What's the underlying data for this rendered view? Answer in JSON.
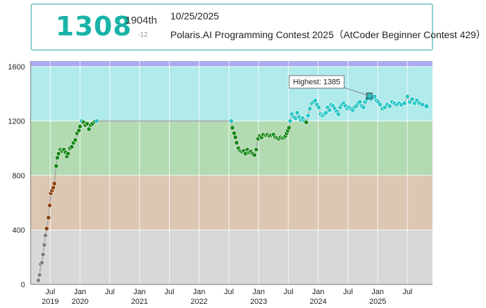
{
  "header": {
    "rating": "1308",
    "rank": "1904th",
    "delta": "-12",
    "date": "10/25/2025",
    "contest_name": "Polaris.AI Programming Contest 2025（AtCoder Beginner Contest 429）"
  },
  "colors": {
    "accent": "#19b3a8",
    "band_gray": "#d8d8d8",
    "band_brown": "#dcc7b3",
    "band_green": "#b3dbb2",
    "band_cyan": "#b1eaea",
    "band_blue": "#aaaaf0",
    "dot_gray": "#808080",
    "dot_brown": "#8b4513",
    "dot_green": "#1a8a1a",
    "dot_cyan": "#26c6c6"
  },
  "tooltip": {
    "label": "Highest: 1385"
  },
  "chart_data": {
    "type": "scatter",
    "ylim": [
      0,
      1600
    ],
    "y_ticks": [
      "0",
      "400",
      "800",
      "1200",
      "1600"
    ],
    "x_month_ticks": [
      "Jul",
      "Jan",
      "Jul",
      "Jan",
      "Jul",
      "Jan",
      "Jul",
      "Jan",
      "Jul",
      "Jan",
      "Jul",
      "Jan",
      "Jul"
    ],
    "x_year_ticks": [
      "2019",
      "2020",
      "2021",
      "2022",
      "2023",
      "2024",
      "2025"
    ],
    "x_range": [
      2019.17,
      2025.92
    ],
    "points": [
      [
        2019.3,
        30
      ],
      [
        2019.32,
        70
      ],
      [
        2019.34,
        150
      ],
      [
        2019.36,
        160
      ],
      [
        2019.38,
        220
      ],
      [
        2019.4,
        290
      ],
      [
        2019.42,
        360
      ],
      [
        2019.44,
        410
      ],
      [
        2019.47,
        490
      ],
      [
        2019.49,
        580
      ],
      [
        2019.51,
        670
      ],
      [
        2019.53,
        690
      ],
      [
        2019.55,
        710
      ],
      [
        2019.57,
        740
      ],
      [
        2019.6,
        870
      ],
      [
        2019.62,
        930
      ],
      [
        2019.64,
        960
      ],
      [
        2019.67,
        990
      ],
      [
        2019.7,
        980
      ],
      [
        2019.73,
        990
      ],
      [
        2019.76,
        970
      ],
      [
        2019.78,
        940
      ],
      [
        2019.8,
        960
      ],
      [
        2019.83,
        1000
      ],
      [
        2019.86,
        1010
      ],
      [
        2019.89,
        1040
      ],
      [
        2019.92,
        1060
      ],
      [
        2019.95,
        1110
      ],
      [
        2019.98,
        1130
      ],
      [
        2020.0,
        1160
      ],
      [
        2020.03,
        1200
      ],
      [
        2020.06,
        1190
      ],
      [
        2020.09,
        1170
      ],
      [
        2020.12,
        1180
      ],
      [
        2020.15,
        1140
      ],
      [
        2020.18,
        1170
      ],
      [
        2020.21,
        1180
      ],
      [
        2020.25,
        1195
      ],
      [
        2020.28,
        1200
      ],
      [
        2022.54,
        1200
      ],
      [
        2022.56,
        1150
      ],
      [
        2022.59,
        1110
      ],
      [
        2022.61,
        1080
      ],
      [
        2022.63,
        1040
      ],
      [
        2022.66,
        1000
      ],
      [
        2022.69,
        980
      ],
      [
        2022.72,
        975
      ],
      [
        2022.75,
        980
      ],
      [
        2022.78,
        960
      ],
      [
        2022.81,
        990
      ],
      [
        2022.84,
        970
      ],
      [
        2022.87,
        975
      ],
      [
        2022.9,
        960
      ],
      [
        2022.93,
        950
      ],
      [
        2022.96,
        990
      ],
      [
        2022.99,
        1070
      ],
      [
        2023.02,
        1090
      ],
      [
        2023.05,
        1080
      ],
      [
        2023.08,
        1100
      ],
      [
        2023.12,
        1095
      ],
      [
        2023.15,
        1100
      ],
      [
        2023.18,
        1090
      ],
      [
        2023.21,
        1095
      ],
      [
        2023.25,
        1100
      ],
      [
        2023.28,
        1080
      ],
      [
        2023.31,
        1075
      ],
      [
        2023.34,
        1070
      ],
      [
        2023.37,
        1080
      ],
      [
        2023.4,
        1075
      ],
      [
        2023.43,
        1080
      ],
      [
        2023.45,
        1090
      ],
      [
        2023.47,
        1110
      ],
      [
        2023.49,
        1130
      ],
      [
        2023.51,
        1150
      ],
      [
        2023.53,
        1200
      ],
      [
        2023.56,
        1250
      ],
      [
        2023.59,
        1230
      ],
      [
        2023.62,
        1220
      ],
      [
        2023.65,
        1260
      ],
      [
        2023.68,
        1230
      ],
      [
        2023.71,
        1210
      ],
      [
        2023.74,
        1220
      ],
      [
        2023.77,
        1200
      ],
      [
        2023.8,
        1190
      ],
      [
        2023.83,
        1240
      ],
      [
        2023.86,
        1290
      ],
      [
        2023.89,
        1330
      ],
      [
        2023.92,
        1340
      ],
      [
        2023.95,
        1350
      ],
      [
        2023.98,
        1320
      ],
      [
        2024.01,
        1300
      ],
      [
        2024.04,
        1250
      ],
      [
        2024.07,
        1240
      ],
      [
        2024.1,
        1250
      ],
      [
        2024.13,
        1260
      ],
      [
        2024.16,
        1300
      ],
      [
        2024.19,
        1280
      ],
      [
        2024.22,
        1320
      ],
      [
        2024.25,
        1310
      ],
      [
        2024.28,
        1290
      ],
      [
        2024.31,
        1270
      ],
      [
        2024.34,
        1250
      ],
      [
        2024.37,
        1300
      ],
      [
        2024.4,
        1320
      ],
      [
        2024.43,
        1330
      ],
      [
        2024.46,
        1310
      ],
      [
        2024.49,
        1290
      ],
      [
        2024.52,
        1300
      ],
      [
        2024.55,
        1290
      ],
      [
        2024.58,
        1280
      ],
      [
        2024.61,
        1300
      ],
      [
        2024.64,
        1310
      ],
      [
        2024.67,
        1330
      ],
      [
        2024.7,
        1340
      ],
      [
        2024.73,
        1310
      ],
      [
        2024.76,
        1300
      ],
      [
        2024.79,
        1340
      ],
      [
        2024.82,
        1360
      ],
      [
        2024.86,
        1385
      ],
      [
        2024.89,
        1360
      ],
      [
        2024.92,
        1370
      ],
      [
        2024.95,
        1380
      ],
      [
        2024.98,
        1350
      ],
      [
        2025.01,
        1340
      ],
      [
        2025.04,
        1320
      ],
      [
        2025.08,
        1290
      ],
      [
        2025.12,
        1300
      ],
      [
        2025.16,
        1320
      ],
      [
        2025.2,
        1310
      ],
      [
        2025.24,
        1340
      ],
      [
        2025.28,
        1330
      ],
      [
        2025.32,
        1320
      ],
      [
        2025.36,
        1330
      ],
      [
        2025.4,
        1320
      ],
      [
        2025.45,
        1330
      ],
      [
        2025.5,
        1380
      ],
      [
        2025.54,
        1340
      ],
      [
        2025.58,
        1360
      ],
      [
        2025.62,
        1330
      ],
      [
        2025.66,
        1350
      ],
      [
        2025.7,
        1330
      ],
      [
        2025.75,
        1320
      ],
      [
        2025.82,
        1308
      ]
    ]
  }
}
